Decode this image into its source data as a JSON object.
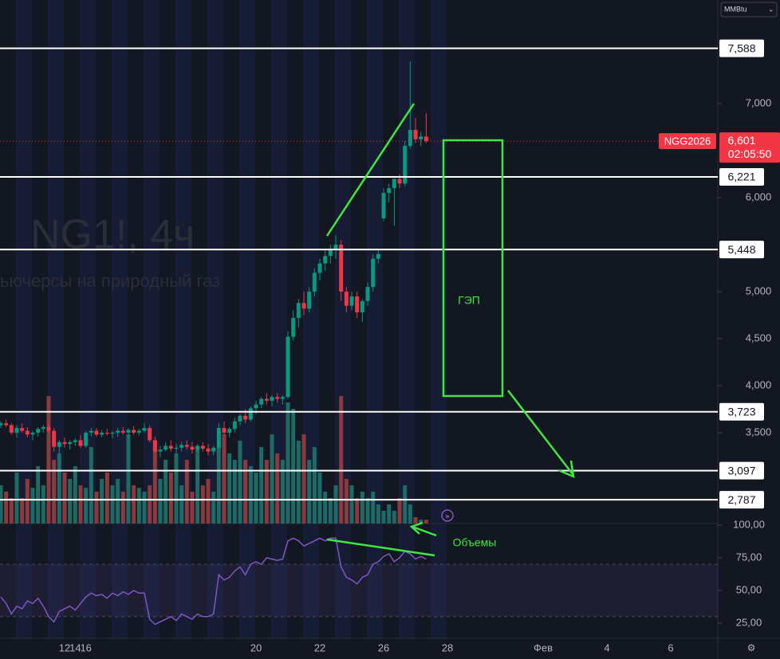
{
  "chart_data": {
    "type": "candlestick",
    "title": "NG1!, 4ч",
    "subtitle": "ьючерсы на природный газ",
    "unit_label": "MMBtu",
    "symbol": "NGG2026",
    "last": {
      "value": 6.601,
      "label": "6,601"
    },
    "countdown": "02:05:50",
    "ylim": [
      2.534,
      8.102
    ],
    "yticks": [
      {
        "value": 7,
        "label": "7,000"
      },
      {
        "value": 6,
        "label": "6,000"
      },
      {
        "value": 5,
        "label": "5,000"
      },
      {
        "value": 4.5,
        "label": "4,500"
      },
      {
        "value": 4,
        "label": "4,000"
      },
      {
        "value": 3.5,
        "label": "3,500"
      }
    ],
    "levels": [
      {
        "value": 7.588,
        "label": "7,588"
      },
      {
        "value": 6.221,
        "label": "6,221"
      },
      {
        "value": 5.448,
        "label": "5,448"
      },
      {
        "value": 3.723,
        "label": "3,723"
      },
      {
        "value": 3.097,
        "label": "3,097"
      },
      {
        "value": 2.787,
        "label": "2,787"
      }
    ],
    "xticks": [
      12,
      14,
      16,
      {
        "value": 48,
        "label": "20"
      },
      {
        "value": 60,
        "label": "22"
      },
      {
        "value": 72,
        "label": "26"
      },
      {
        "value": 84,
        "label": "28"
      },
      {
        "value": 102,
        "label": "Фев"
      },
      {
        "value": 114,
        "label": "4"
      },
      {
        "value": 126,
        "label": "6"
      }
    ],
    "colors": {
      "up": "#089981",
      "down": "#f23645"
    },
    "ohlc": [
      [
        3.58,
        3.62,
        3.55,
        3.6
      ],
      [
        3.6,
        3.64,
        3.56,
        3.58
      ],
      [
        3.58,
        3.6,
        3.48,
        3.5
      ],
      [
        3.5,
        3.58,
        3.45,
        3.55
      ],
      [
        3.55,
        3.6,
        3.5,
        3.52
      ],
      [
        3.52,
        3.56,
        3.45,
        3.48
      ],
      [
        3.48,
        3.52,
        3.42,
        3.5
      ],
      [
        3.5,
        3.56,
        3.46,
        3.54
      ],
      [
        3.54,
        3.58,
        3.5,
        3.56
      ],
      [
        3.56,
        3.6,
        3.5,
        3.52
      ],
      [
        3.52,
        3.55,
        3.3,
        3.35
      ],
      [
        3.35,
        3.42,
        3.28,
        3.4
      ],
      [
        3.4,
        3.45,
        3.34,
        3.38
      ],
      [
        3.38,
        3.42,
        3.32,
        3.4
      ],
      [
        3.4,
        3.44,
        3.36,
        3.42
      ],
      [
        3.42,
        3.48,
        3.34,
        3.36
      ],
      [
        3.36,
        3.52,
        3.34,
        3.5
      ],
      [
        3.5,
        3.55,
        3.46,
        3.52
      ],
      [
        3.52,
        3.55,
        3.46,
        3.48
      ],
      [
        3.48,
        3.53,
        3.45,
        3.5
      ],
      [
        3.5,
        3.54,
        3.47,
        3.49
      ],
      [
        3.49,
        3.52,
        3.44,
        3.5
      ],
      [
        3.5,
        3.55,
        3.46,
        3.52
      ],
      [
        3.52,
        3.56,
        3.48,
        3.5
      ],
      [
        3.5,
        3.55,
        3.46,
        3.53
      ],
      [
        3.53,
        3.57,
        3.48,
        3.5
      ],
      [
        3.5,
        3.54,
        3.47,
        3.52
      ],
      [
        3.52,
        3.6,
        3.5,
        3.55
      ],
      [
        3.55,
        3.58,
        3.4,
        3.42
      ],
      [
        3.42,
        3.46,
        3.28,
        3.3
      ],
      [
        3.3,
        3.36,
        3.24,
        3.32
      ],
      [
        3.32,
        3.4,
        3.3,
        3.36
      ],
      [
        3.36,
        3.42,
        3.3,
        3.33
      ],
      [
        3.33,
        3.38,
        3.28,
        3.34
      ],
      [
        3.34,
        3.4,
        3.3,
        3.37
      ],
      [
        3.37,
        3.42,
        3.32,
        3.35
      ],
      [
        3.35,
        3.4,
        3.28,
        3.32
      ],
      [
        3.32,
        3.38,
        3.3,
        3.36
      ],
      [
        3.36,
        3.4,
        3.3,
        3.33
      ],
      [
        3.33,
        3.38,
        3.26,
        3.3
      ],
      [
        3.3,
        3.36,
        3.26,
        3.34
      ],
      [
        3.34,
        3.6,
        3.32,
        3.55
      ],
      [
        3.55,
        3.62,
        3.48,
        3.5
      ],
      [
        3.5,
        3.56,
        3.45,
        3.54
      ],
      [
        3.54,
        3.66,
        3.5,
        3.62
      ],
      [
        3.62,
        3.7,
        3.58,
        3.68
      ],
      [
        3.68,
        3.75,
        3.6,
        3.64
      ],
      [
        3.64,
        3.78,
        3.62,
        3.76
      ],
      [
        3.76,
        3.84,
        3.7,
        3.8
      ],
      [
        3.8,
        3.88,
        3.76,
        3.86
      ],
      [
        3.86,
        3.92,
        3.8,
        3.84
      ],
      [
        3.84,
        3.9,
        3.78,
        3.88
      ],
      [
        3.88,
        3.92,
        3.82,
        3.86
      ],
      [
        3.86,
        3.9,
        3.8,
        3.88
      ],
      [
        3.88,
        4.58,
        3.86,
        4.52
      ],
      [
        4.52,
        4.8,
        4.48,
        4.72
      ],
      [
        4.72,
        4.92,
        4.62,
        4.88
      ],
      [
        4.88,
        5.0,
        4.75,
        4.82
      ],
      [
        4.82,
        5.05,
        4.78,
        5.0
      ],
      [
        5.0,
        5.25,
        4.95,
        5.2
      ],
      [
        5.2,
        5.35,
        5.12,
        5.3
      ],
      [
        5.3,
        5.45,
        5.22,
        5.38
      ],
      [
        5.38,
        5.5,
        5.3,
        5.45
      ],
      [
        5.45,
        5.6,
        5.35,
        5.5
      ],
      [
        5.5,
        5.55,
        4.9,
        5.0
      ],
      [
        5.0,
        5.05,
        4.78,
        4.85
      ],
      [
        4.85,
        5.0,
        4.8,
        4.95
      ],
      [
        4.95,
        5.0,
        4.72,
        4.78
      ],
      [
        4.78,
        4.92,
        4.68,
        4.9
      ],
      [
        4.9,
        5.1,
        4.85,
        5.05
      ],
      [
        5.05,
        5.4,
        5.0,
        5.35
      ],
      [
        5.35,
        5.45,
        5.3,
        5.4
      ],
      [
        5.78,
        6.1,
        5.75,
        6.05
      ],
      [
        6.05,
        6.15,
        5.95,
        6.1
      ],
      [
        6.1,
        6.2,
        5.7,
        6.2
      ],
      [
        6.2,
        6.25,
        6.1,
        6.15
      ],
      [
        6.15,
        6.6,
        6.12,
        6.55
      ],
      [
        6.55,
        7.45,
        6.52,
        6.72
      ],
      [
        6.72,
        6.85,
        6.58,
        6.62
      ],
      [
        6.62,
        6.7,
        6.55,
        6.65
      ],
      [
        6.65,
        6.9,
        6.58,
        6.601
      ]
    ],
    "volume": [
      30,
      25,
      20,
      40,
      20,
      35,
      28,
      45,
      30,
      100,
      50,
      55,
      40,
      35,
      45,
      30,
      28,
      60,
      25,
      35,
      40,
      30,
      35,
      25,
      70,
      30,
      28,
      25,
      30,
      60,
      35,
      50,
      40,
      55,
      30,
      50,
      25,
      60,
      30,
      35,
      25,
      60,
      70,
      55,
      50,
      65,
      50,
      45,
      40,
      60,
      50,
      70,
      55,
      50,
      95,
      90,
      65,
      70,
      50,
      60,
      40,
      25,
      20,
      30,
      100,
      35,
      30,
      20,
      25,
      20,
      25,
      15,
      10,
      15,
      10,
      20,
      30,
      15,
      5,
      3,
      3
    ],
    "rsi": {
      "ylim": [
        14,
        100
      ],
      "yticks": [
        {
          "value": 100,
          "label": "100,00"
        },
        {
          "value": 75,
          "label": "75,00"
        },
        {
          "value": 50,
          "label": "50,00"
        },
        {
          "value": 25,
          "label": "25,00"
        }
      ],
      "band": [
        30,
        70
      ],
      "color": "#7e57c2",
      "values": [
        45,
        40,
        32,
        38,
        36,
        42,
        40,
        44,
        38,
        30,
        26,
        34,
        36,
        38,
        35,
        40,
        45,
        48,
        46,
        47,
        44,
        48,
        46,
        49,
        47,
        50,
        48,
        48,
        28,
        24,
        26,
        28,
        30,
        27,
        32,
        30,
        28,
        32,
        30,
        30,
        32,
        62,
        58,
        60,
        65,
        68,
        62,
        70,
        72,
        70,
        75,
        74,
        73,
        74,
        88,
        90,
        88,
        84,
        86,
        88,
        90,
        88,
        90,
        90,
        68,
        60,
        58,
        55,
        60,
        62,
        70,
        72,
        76,
        78,
        72,
        75,
        80,
        78,
        74,
        76,
        74
      ]
    },
    "annotations": [
      "ГЭП",
      "Объемы"
    ]
  }
}
